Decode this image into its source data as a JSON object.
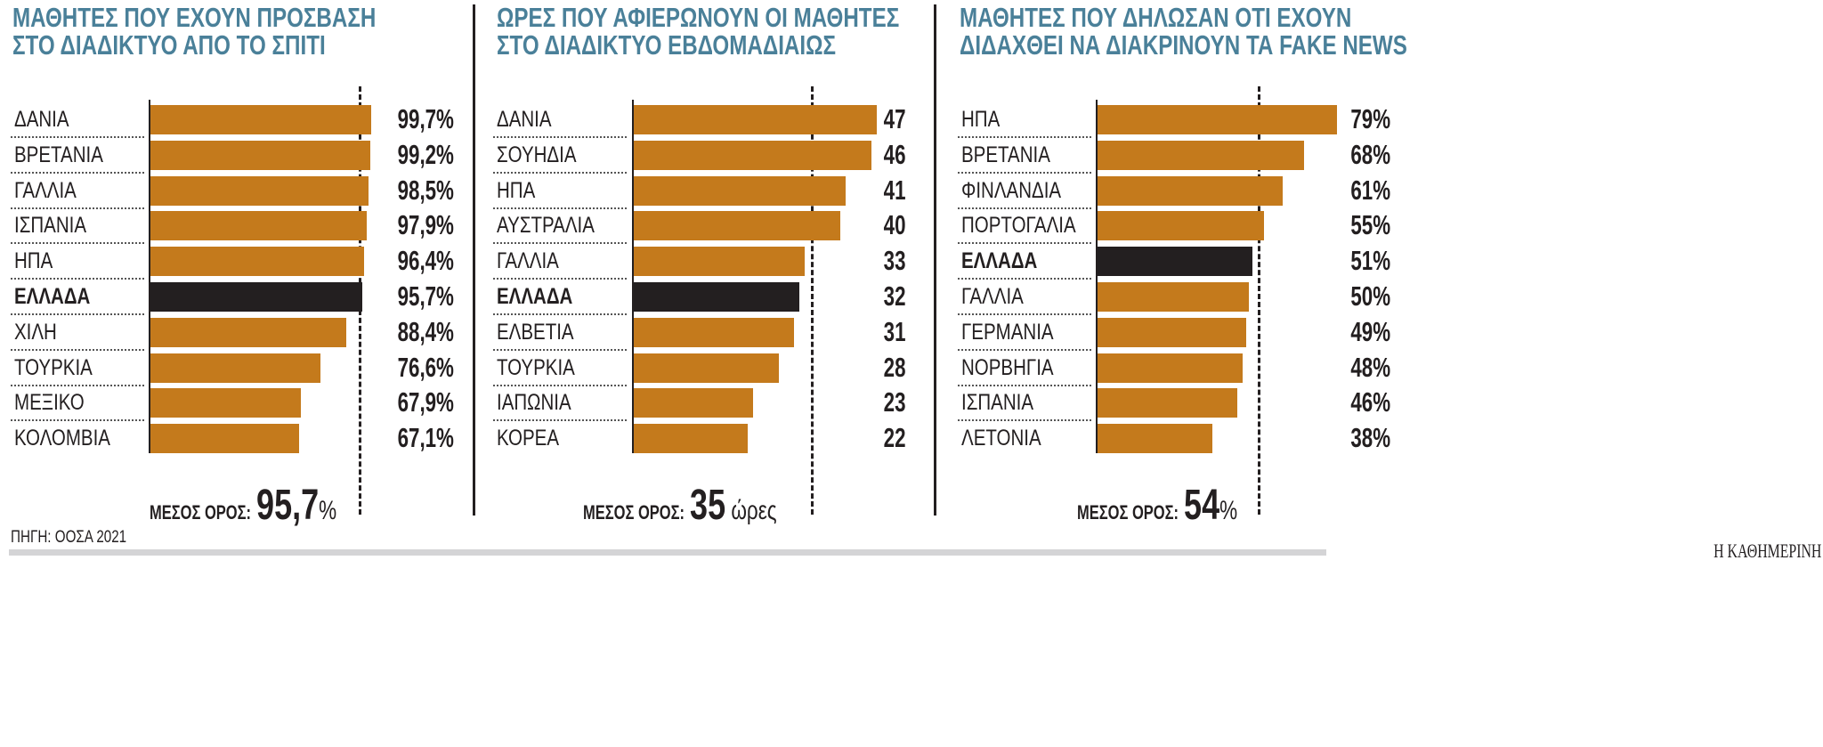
{
  "colors": {
    "bar": "#c47a1c",
    "highlight": "#231f20",
    "title": "#4a8099"
  },
  "chart_data": [
    {
      "type": "bar",
      "orientation": "horizontal",
      "title": [
        "ΜΑΘΗΤΕΣ ΠΟΥ ΕΧΟΥΝ ΠΡΟΣΒΑΣΗ",
        "ΣΤΟ ΔΙΑΔΙΚΤΥΟ ΑΠΟ ΤΟ ΣΠΙΤΙ"
      ],
      "categories": [
        "ΔΑΝΙΑ",
        "ΒΡΕΤΑΝΙΑ",
        "ΓΑΛΛΙΑ",
        "ΙΣΠΑΝΙΑ",
        "ΗΠΑ",
        "ΕΛΛΑΔΑ",
        "ΧΙΛΗ",
        "ΤΟΥΡΚΙΑ",
        "ΜΕΞΙΚΟ",
        "ΚΟΛΟΜΒΙΑ"
      ],
      "values": [
        99.7,
        99.2,
        98.5,
        97.9,
        96.4,
        95.7,
        88.4,
        76.6,
        67.9,
        67.1
      ],
      "value_labels": [
        "99,7%",
        "99,2%",
        "98,5%",
        "97,9%",
        "96,4%",
        "95,7%",
        "88,4%",
        "76,6%",
        "67,9%",
        "67,1%"
      ],
      "highlight": "ΕΛΛΑΔΑ",
      "mean": {
        "value": 95.7,
        "label": "ΜΕΣΟΣ ΟΡΟΣ:",
        "value_text": "95,7",
        "unit": "%"
      }
    },
    {
      "type": "bar",
      "orientation": "horizontal",
      "title": [
        "ΩΡΕΣ ΠΟΥ ΑΦΙΕΡΩΝΟΥΝ ΟΙ ΜΑΘΗΤΕΣ",
        "ΣΤΟ ΔΙΑΔΙΚΤΥΟ ΕΒΔΟΜΑΔΙΑΙΩΣ"
      ],
      "categories": [
        "ΔΑΝΙΑ",
        "ΣΟΥΗΔΙΑ",
        "ΗΠΑ",
        "ΑΥΣΤΡΑΛΙΑ",
        "ΓΑΛΛΙΑ",
        "ΕΛΛΑΔΑ",
        "ΕΛΒΕΤΙΑ",
        "ΤΟΥΡΚΙΑ",
        "ΙΑΠΩΝΙΑ",
        "ΚΟΡΕΑ"
      ],
      "values": [
        47,
        46,
        41,
        40,
        33,
        32,
        31,
        28,
        23,
        22
      ],
      "value_labels": [
        "47",
        "46",
        "41",
        "40",
        "33",
        "32",
        "31",
        "28",
        "23",
        "22"
      ],
      "highlight": "ΕΛΛΑΔΑ",
      "mean": {
        "value": 35,
        "label": "ΜΕΣΟΣ ΟΡΟΣ:",
        "value_text": "35",
        "unit": " ώρες"
      }
    },
    {
      "type": "bar",
      "orientation": "horizontal",
      "title": [
        "ΜΑΘΗΤΕΣ ΠΟΥ ΔΗΛΩΣΑΝ ΟΤΙ ΕΧΟΥΝ",
        "ΔΙΔΑΧΘΕΙ ΝΑ ΔΙΑΚΡΙΝΟΥΝ ΤΑ FAKE NEWS"
      ],
      "categories": [
        "ΗΠΑ",
        "ΒΡΕΤΑΝΙΑ",
        "ΦΙΝΛΑΝΔΙΑ",
        "ΠΟΡΤΟΓΑΛΙΑ",
        "ΕΛΛΑΔΑ",
        "ΓΑΛΛΙΑ",
        "ΓΕΡΜΑΝΙΑ",
        "ΝΟΡΒΗΓΙΑ",
        "ΙΣΠΑΝΙΑ",
        "ΛΕΤΟΝΙΑ"
      ],
      "values": [
        79,
        68,
        61,
        55,
        51,
        50,
        49,
        48,
        46,
        38
      ],
      "value_labels": [
        "79%",
        "68%",
        "61%",
        "55%",
        "51%",
        "50%",
        "49%",
        "48%",
        "46%",
        "38%"
      ],
      "highlight": "ΕΛΛΑΔΑ",
      "mean": {
        "value": 54,
        "label": "ΜΕΣΟΣ ΟΡΟΣ:",
        "value_text": "54",
        "unit": "%"
      }
    }
  ],
  "footer": {
    "source": "ΠΗΓΗ: ΟΟΣΑ 2021",
    "brand": "Η ΚΑΘΗΜΕΡΙΝΗ"
  }
}
